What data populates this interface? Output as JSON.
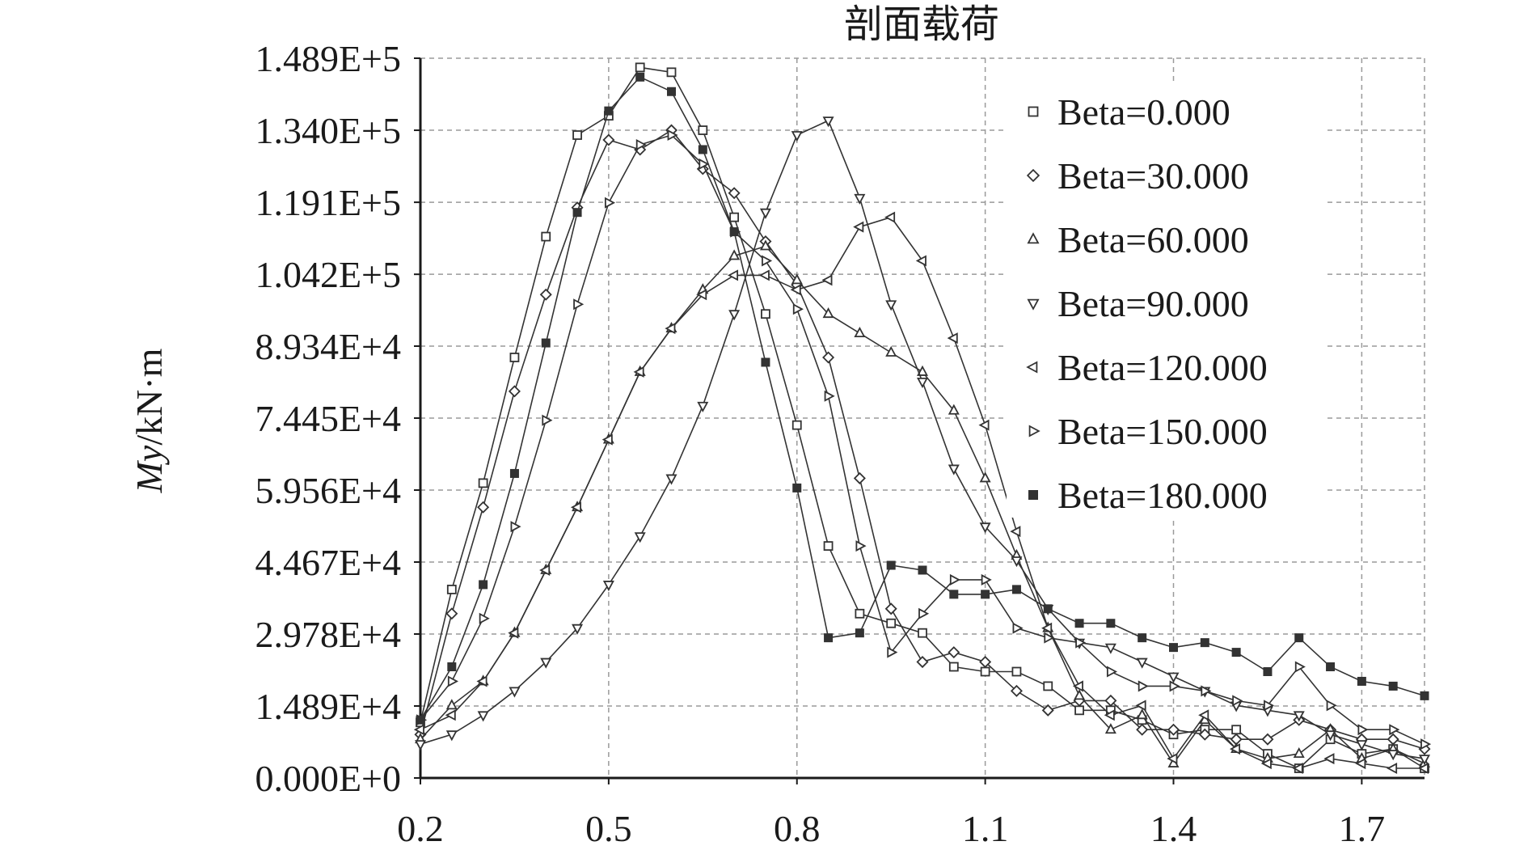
{
  "chart_data": {
    "type": "line",
    "title": "剖面载荷",
    "xlabel": "",
    "ylabel": "My/kN·m",
    "ylabel_parts": [
      "My",
      "/kN·m"
    ],
    "xlim": [
      0.2,
      1.8
    ],
    "ylim": [
      0,
      148900
    ],
    "xticks": [
      0.2,
      0.5,
      0.8,
      1.1,
      1.4,
      1.7
    ],
    "xtick_labels": [
      "0.2",
      "0.5",
      "0.8",
      "1.1",
      "1.4",
      "1.7"
    ],
    "yticks": [
      0,
      14890,
      29780,
      44670,
      59560,
      74450,
      89340,
      104200,
      119100,
      134000,
      148900
    ],
    "ytick_labels": [
      "0.000E+0",
      "1.489E+4",
      "2.978E+4",
      "4.467E+4",
      "5.956E+4",
      "7.445E+4",
      "8.934E+4",
      "1.042E+5",
      "1.191E+5",
      "1.340E+5",
      "1.489E+5"
    ],
    "grid": true,
    "legend_position": "top-right",
    "line_color": "#333333",
    "x": [
      0.2,
      0.25,
      0.3,
      0.35,
      0.4,
      0.45,
      0.5,
      0.55,
      0.6,
      0.65,
      0.7,
      0.75,
      0.8,
      0.85,
      0.9,
      0.95,
      1.0,
      1.05,
      1.1,
      1.15,
      1.2,
      1.25,
      1.3,
      1.35,
      1.4,
      1.45,
      1.5,
      1.55,
      1.6,
      1.65,
      1.7,
      1.75,
      1.8
    ],
    "series": [
      {
        "name": "Beta=0.000",
        "marker": "square-open",
        "values": [
          11500,
          39000,
          61000,
          87000,
          112000,
          133000,
          137000,
          147000,
          146000,
          134000,
          116000,
          96000,
          73000,
          48000,
          34000,
          32000,
          30000,
          23000,
          22000,
          22000,
          19000,
          14000,
          14000,
          12000,
          9000,
          10000,
          10000,
          5000,
          2000,
          8000,
          5000,
          6000,
          2000
        ]
      },
      {
        "name": "Beta=30.000",
        "marker": "diamond-open",
        "values": [
          9000,
          34000,
          56000,
          80000,
          100000,
          118000,
          132000,
          130000,
          134000,
          126000,
          121000,
          111000,
          102000,
          87000,
          62000,
          35000,
          24000,
          26000,
          24000,
          18000,
          14000,
          16000,
          16000,
          10000,
          10000,
          9000,
          8000,
          8000,
          12000,
          10000,
          8000,
          8000,
          6000
        ]
      },
      {
        "name": "Beta=60.000",
        "marker": "triangle-up-open",
        "values": [
          8000,
          15000,
          20000,
          30000,
          43000,
          56000,
          70000,
          84000,
          93000,
          101000,
          108000,
          110000,
          103000,
          96000,
          92000,
          88000,
          84000,
          76000,
          62000,
          46000,
          31000,
          17000,
          10000,
          13000,
          3000,
          12000,
          6000,
          4000,
          5000,
          10000,
          4000,
          6000,
          3000
        ]
      },
      {
        "name": "Beta=90.000",
        "marker": "triangle-down-open",
        "values": [
          7000,
          9000,
          13000,
          18000,
          24000,
          31000,
          40000,
          50000,
          62000,
          77000,
          96000,
          117000,
          133000,
          136000,
          120000,
          98000,
          82000,
          64000,
          52000,
          45000,
          35000,
          28000,
          27000,
          24000,
          21000,
          18000,
          15000,
          14000,
          13000,
          9000,
          7000,
          5000,
          4000
        ]
      },
      {
        "name": "Beta=120.000",
        "marker": "triangle-left-open",
        "values": [
          10000,
          13000,
          20000,
          30000,
          43000,
          56000,
          70000,
          84000,
          93000,
          100000,
          104000,
          104000,
          101000,
          103000,
          114000,
          116000,
          107000,
          91000,
          73000,
          51000,
          31000,
          19000,
          13000,
          15000,
          4000,
          13000,
          6000,
          3000,
          2000,
          4000,
          3000,
          2000,
          2000
        ]
      },
      {
        "name": "Beta=150.000",
        "marker": "triangle-right-open",
        "values": [
          12000,
          20000,
          33000,
          52000,
          74000,
          98000,
          119000,
          131000,
          133000,
          127000,
          113000,
          107000,
          97000,
          79000,
          48000,
          26000,
          34000,
          41000,
          41000,
          31000,
          29000,
          28000,
          22000,
          19000,
          19000,
          18000,
          16000,
          15000,
          23000,
          15000,
          10000,
          10000,
          7000
        ]
      },
      {
        "name": "Beta=180.000",
        "marker": "square-filled",
        "values": [
          12000,
          23000,
          40000,
          63000,
          90000,
          117000,
          138000,
          145000,
          142000,
          130000,
          113000,
          86000,
          60000,
          29000,
          30000,
          44000,
          43000,
          38000,
          38000,
          39000,
          35000,
          32000,
          32000,
          29000,
          27000,
          28000,
          26000,
          22000,
          29000,
          23000,
          20000,
          19000,
          17000
        ]
      }
    ]
  }
}
